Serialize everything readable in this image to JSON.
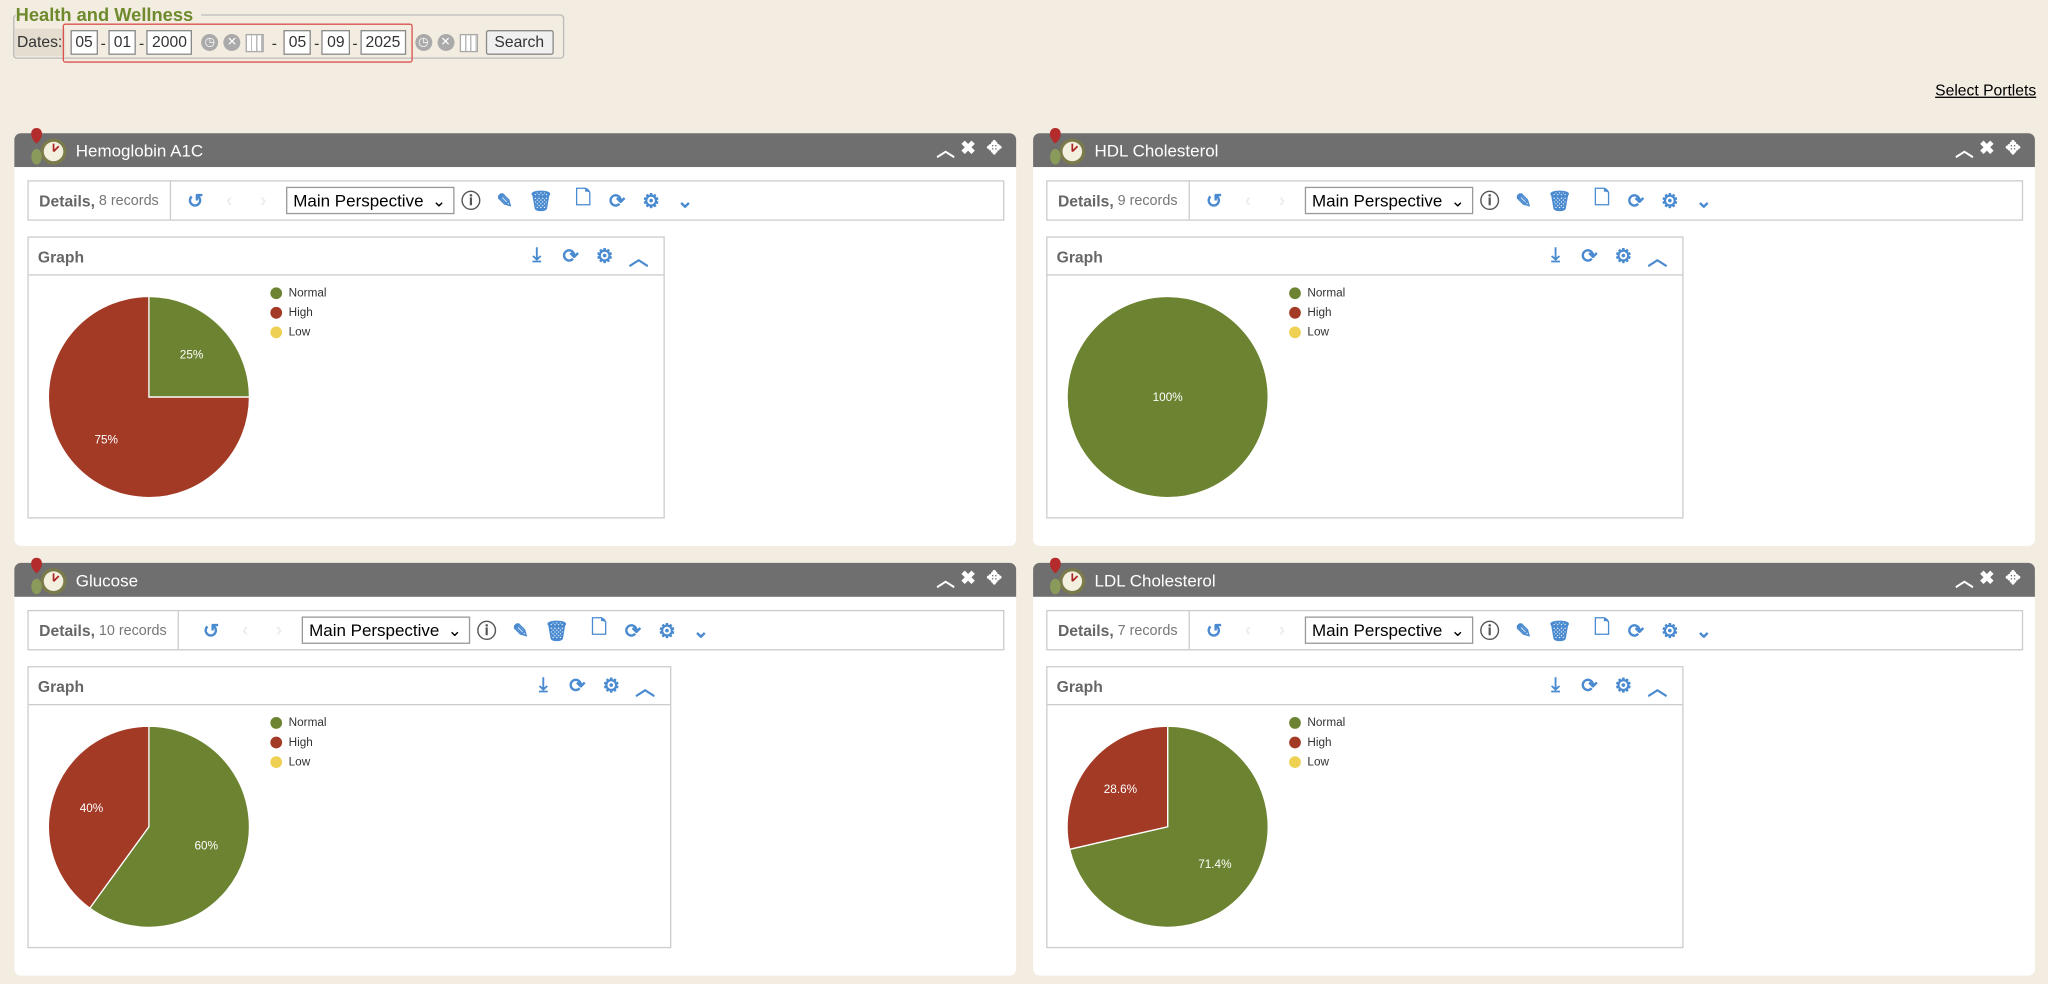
{
  "header": {
    "title": "Health and Wellness",
    "dates_label": "Dates:",
    "from": {
      "month": "05",
      "day": "01",
      "year": "2000"
    },
    "to": {
      "month": "05",
      "day": "09",
      "year": "2025"
    },
    "search_label": "Search",
    "select_portlets": "Select Portlets"
  },
  "colors": {
    "Normal": "#6c8431",
    "High": "#a33a26",
    "Low": "#eed152",
    "header_bar": "#6f6f6f",
    "accent": "#4a8ad0"
  },
  "portlets": [
    {
      "title": "Hemoglobin A1C",
      "details_label": "Details,",
      "records": "8 records",
      "perspective": "Main Perspective",
      "graph_label": "Graph",
      "legend": [
        "Normal",
        "High",
        "Low"
      ],
      "slices": [
        {
          "name": "Normal",
          "value": 25,
          "label": "25%"
        },
        {
          "name": "High",
          "value": 75,
          "label": "75%"
        }
      ]
    },
    {
      "title": "HDL Cholesterol",
      "details_label": "Details,",
      "records": "9 records",
      "perspective": "Main Perspective",
      "graph_label": "Graph",
      "legend": [
        "Normal",
        "High",
        "Low"
      ],
      "slices": [
        {
          "name": "Normal",
          "value": 100,
          "label": "100%"
        }
      ]
    },
    {
      "title": "Glucose",
      "details_label": "Details,",
      "records": "10 records",
      "perspective": "Main Perspective",
      "graph_label": "Graph",
      "legend": [
        "Normal",
        "High",
        "Low"
      ],
      "slices": [
        {
          "name": "Normal",
          "value": 60,
          "label": "60%"
        },
        {
          "name": "High",
          "value": 40,
          "label": "40%"
        }
      ]
    },
    {
      "title": "LDL Cholesterol",
      "details_label": "Details,",
      "records": "7 records",
      "perspective": "Main Perspective",
      "graph_label": "Graph",
      "legend": [
        "Normal",
        "High",
        "Low"
      ],
      "slices": [
        {
          "name": "Normal",
          "value": 71.4,
          "label": "71.4%"
        },
        {
          "name": "High",
          "value": 28.6,
          "label": "28.6%"
        }
      ]
    }
  ]
}
